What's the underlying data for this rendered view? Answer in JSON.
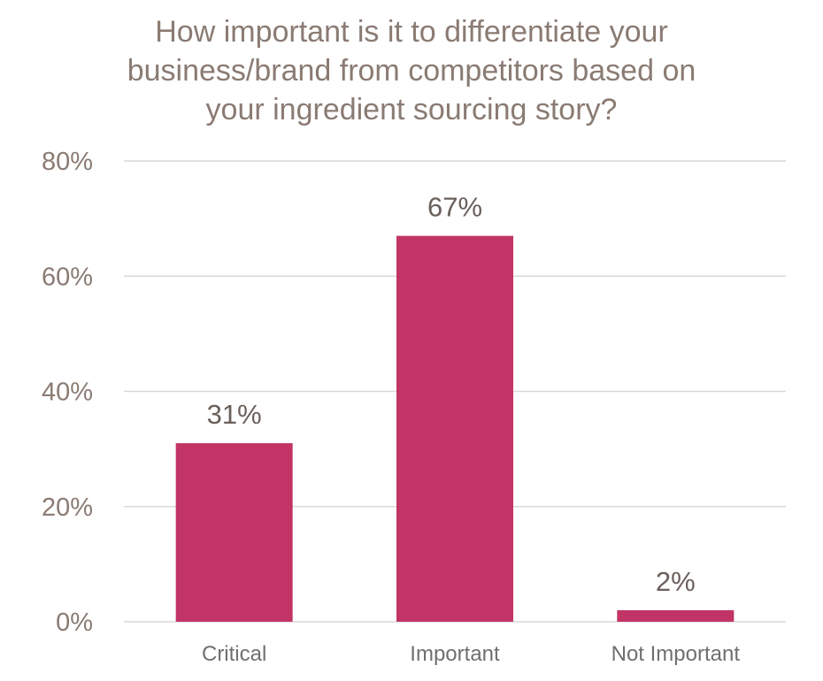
{
  "chart_data": {
    "type": "bar",
    "title_lines": [
      "How important is it to differentiate your",
      "business/brand from competitors based on",
      "your ingredient sourcing story?"
    ],
    "categories": [
      "Critical",
      "Important",
      "Not Important"
    ],
    "values": [
      31,
      67,
      2
    ],
    "data_labels": [
      "31%",
      "67%",
      "2%"
    ],
    "ylim": [
      0,
      80
    ],
    "yticks": [
      0,
      20,
      40,
      60,
      80
    ],
    "ytick_labels": [
      "0%",
      "20%",
      "40%",
      "60%",
      "80%"
    ],
    "grid": true,
    "bar_color": "#c23466"
  }
}
